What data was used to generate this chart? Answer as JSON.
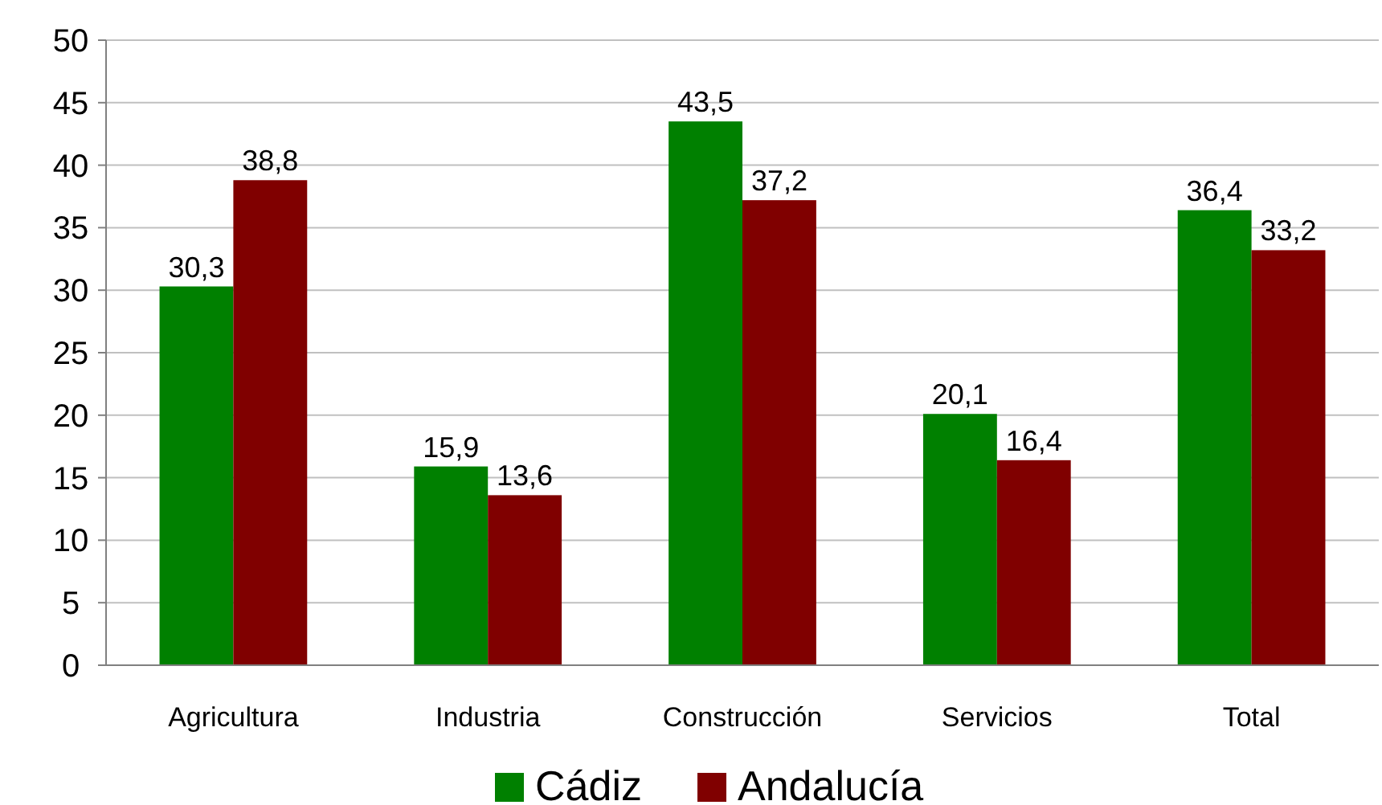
{
  "chart_data": {
    "type": "bar",
    "categories": [
      "Agricultura",
      "Industria",
      "Construcción",
      "Servicios",
      "Total"
    ],
    "series": [
      {
        "name": "Cádiz",
        "color": "#008000",
        "values": [
          30.3,
          15.9,
          43.5,
          20.1,
          36.4
        ],
        "value_labels": [
          "30,3",
          "15,9",
          "43,5",
          "20,1",
          "36,4"
        ]
      },
      {
        "name": "Andalucía",
        "color": "#800000",
        "values": [
          38.8,
          13.6,
          37.2,
          16.4,
          33.2
        ],
        "value_labels": [
          "38,8",
          "13,6",
          "37,2",
          "16,4",
          "33,2"
        ]
      }
    ],
    "ylim": [
      0,
      50
    ],
    "yticks": [
      0,
      5,
      10,
      15,
      20,
      25,
      30,
      35,
      40,
      45,
      50
    ],
    "grid": "y",
    "legend": "bottom"
  }
}
